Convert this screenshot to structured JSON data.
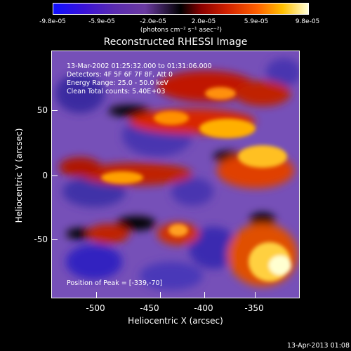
{
  "colorbar": {
    "ticks": [
      "-9.8e-05",
      "-5.9e-05",
      "-2.0e-05",
      "2.0e-05",
      "5.9e-05",
      "9.8e-05"
    ],
    "unit": "(photons cm⁻² s⁻¹ asec⁻²)"
  },
  "title": "Reconstructed RHESSI Image",
  "info": {
    "time_range": "13-Mar-2002 01:25:32.000 to 01:31:06.000",
    "detectors": "Detectors: 4F 5F 6F 7F 8F, Att 0",
    "energy": "Energy Range: 25.0 - 50.0 keV",
    "counts": "Clean      Total counts: 5.40E+03",
    "peak": "Position of Peak = [-339,-70]"
  },
  "axes": {
    "xlabel": "Heliocentric X (arcsec)",
    "ylabel": "Heliocentric Y (arcsec)",
    "xticks": [
      "-500",
      "-450",
      "-400",
      "-350"
    ],
    "yticks": [
      "50",
      "0",
      "-50"
    ]
  },
  "footer": {
    "date": "13-Apr-2013 01:08"
  }
}
